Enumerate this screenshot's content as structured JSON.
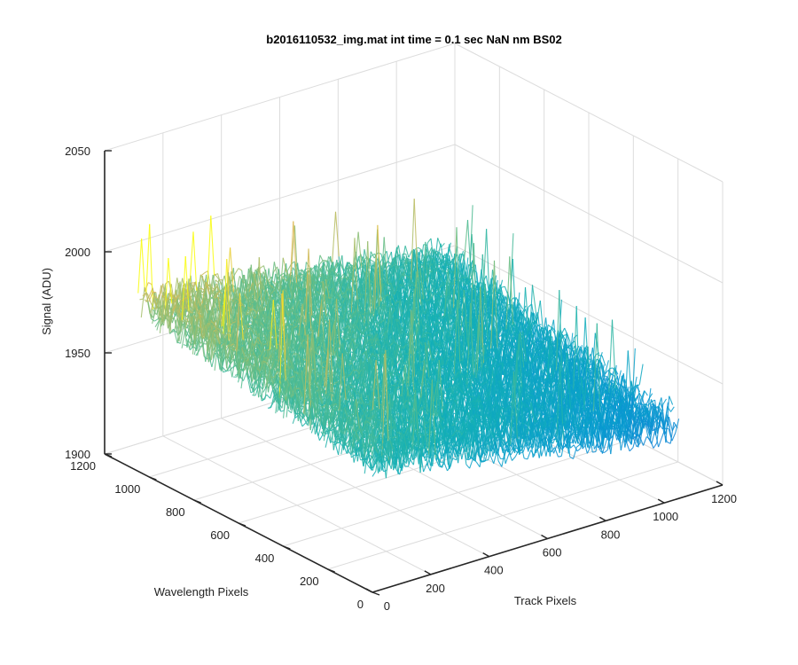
{
  "chart_data": {
    "type": "surface",
    "title": "b2016110532_img.mat int time = 0.1 sec  NaN nm BS02",
    "xlabel": "Track Pixels",
    "ylabel": "Wavelength Pixels",
    "zlabel": "Signal (ADU)",
    "xlim": [
      0,
      1200
    ],
    "ylim": [
      0,
      1200
    ],
    "zlim": [
      1900,
      2050
    ],
    "x_ticks": [
      "0",
      "200",
      "400",
      "600",
      "800",
      "1000",
      "1200"
    ],
    "y_ticks": [
      "0",
      "200",
      "400",
      "600",
      "800",
      "1000",
      "1200"
    ],
    "z_ticks": [
      "1900",
      "1950",
      "2000",
      "2050"
    ],
    "grid": true,
    "colormap": "parula",
    "surface_summary": {
      "x_extent": [
        0,
        1050
      ],
      "y_extent": [
        0,
        1050
      ],
      "mean_signal_at_y0_x0": 1965,
      "mean_signal_at_y1050_x0": 1985,
      "mean_signal_at_y0_x1050": 1935,
      "mean_signal_at_y1050_x1050": 1960,
      "noise_amplitude": 10,
      "peak_signal": 2030,
      "min_signal": 1925
    }
  }
}
